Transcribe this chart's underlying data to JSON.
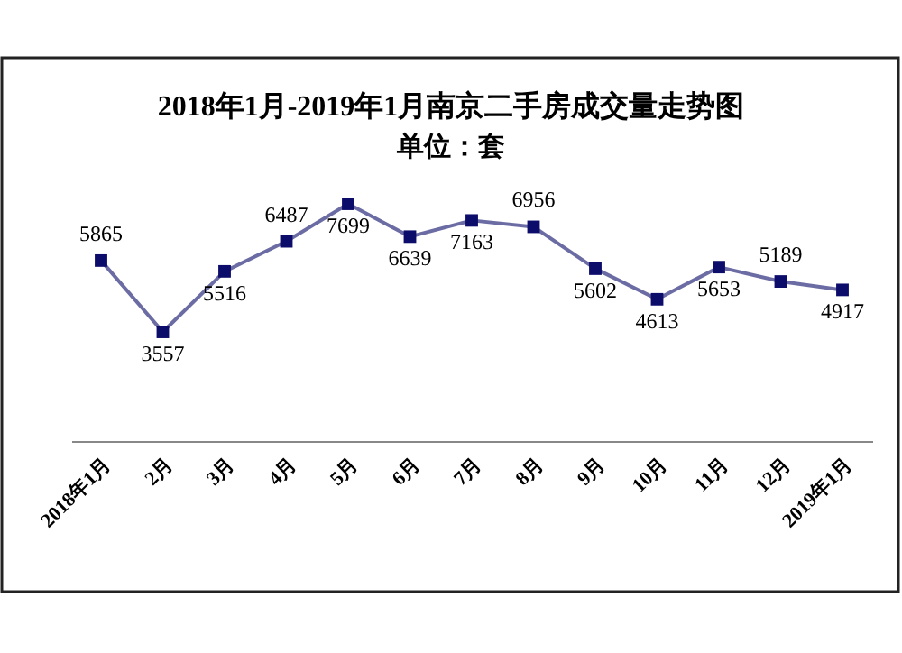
{
  "chart_data": {
    "type": "line",
    "title": "2018年1月-2019年1月南京二手房成交量走势图",
    "subtitle": "单位：套",
    "categories": [
      "2018年1月",
      "2月",
      "3月",
      "4月",
      "5月",
      "6月",
      "7月",
      "8月",
      "9月",
      "10月",
      "11月",
      "12月",
      "2019年1月"
    ],
    "series": [
      {
        "color": "#3b3b86",
        "values": [
          5865,
          3557,
          5516,
          6487,
          7699,
          6639,
          7163,
          6956,
          5602,
          4613,
          5653,
          5189,
          4917
        ]
      }
    ],
    "data_labels": true,
    "marker": "square",
    "line_style": "solid"
  }
}
